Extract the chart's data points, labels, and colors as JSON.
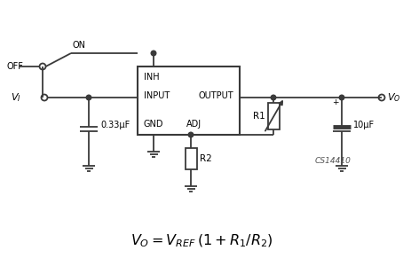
{
  "bg_color": "#ffffff",
  "line_color": "#3a3a3a",
  "text_color": "#000000",
  "fig_width": 4.54,
  "fig_height": 3.0,
  "dpi": 100,
  "cs_label": "CS14410",
  "cap1_label": "0.33μF",
  "cap2_label": "10μF",
  "r1_label": "R1",
  "r2_label": "R2",
  "vi_label": "V",
  "vi_sub": "I",
  "vo_label": "V",
  "vo_sub": "O",
  "off_label": "OFF",
  "on_label": "ON",
  "inh_label": "INH",
  "input_label": "INPUT",
  "output_label": "OUTPUT",
  "gnd_label": "GND",
  "adj_label": "ADJ"
}
